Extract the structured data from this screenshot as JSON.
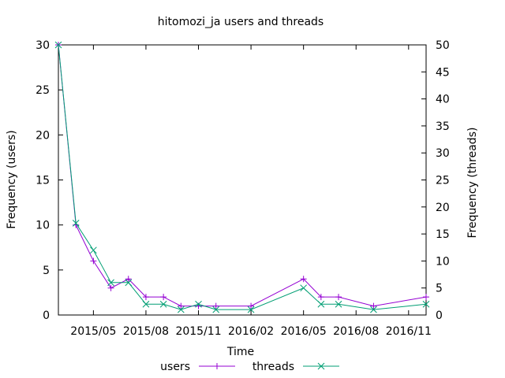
{
  "chart_data": {
    "type": "line",
    "title": "hitomozi_ja users and threads",
    "xlabel": "Time",
    "ylabel_left": "Frequency (users)",
    "ylabel_right": "Frequency (threads)",
    "x": [
      "2015-03",
      "2015-04",
      "2015-05",
      "2015-06",
      "2015-07",
      "2015-08",
      "2015-09",
      "2015-10",
      "2015-11",
      "2015-12",
      "2016-01",
      "2016-02",
      "2016-03",
      "2016-04",
      "2016-05",
      "2016-06",
      "2016-07",
      "2016-08",
      "2016-09",
      "2016-10",
      "2016-11",
      "2016-12"
    ],
    "x_ticks": [
      "2015/05",
      "2015/08",
      "2015/11",
      "2016/02",
      "2016/05",
      "2016/08",
      "2016/11"
    ],
    "left_axis": {
      "range": [
        0,
        30
      ],
      "ticks": [
        0,
        5,
        10,
        15,
        20,
        25,
        30
      ]
    },
    "right_axis": {
      "range": [
        0,
        50
      ],
      "ticks": [
        0,
        5,
        10,
        15,
        20,
        25,
        30,
        35,
        40,
        45,
        50
      ]
    },
    "legend_position": "bottom",
    "grid": false,
    "series": [
      {
        "name": "users",
        "axis": "left",
        "color": "#9400d3",
        "marker": "plus",
        "points": [
          [
            "2015-03",
            30
          ],
          [
            "2015-04",
            10
          ],
          [
            "2015-05",
            6
          ],
          [
            "2015-06",
            3
          ],
          [
            "2015-07",
            4
          ],
          [
            "2015-08",
            2
          ],
          [
            "2015-09",
            2
          ],
          [
            "2015-10",
            1
          ],
          [
            "2015-11",
            1
          ],
          [
            "2015-12",
            1
          ],
          [
            "2016-02",
            1
          ],
          [
            "2016-05",
            4
          ],
          [
            "2016-06",
            2
          ],
          [
            "2016-07",
            2
          ],
          [
            "2016-09",
            1
          ],
          [
            "2016-12",
            2
          ]
        ]
      },
      {
        "name": "threads",
        "axis": "right",
        "color": "#009e73",
        "marker": "cross",
        "points": [
          [
            "2015-03",
            50
          ],
          [
            "2015-04",
            17
          ],
          [
            "2015-05",
            12
          ],
          [
            "2015-06",
            6
          ],
          [
            "2015-07",
            6
          ],
          [
            "2015-08",
            2
          ],
          [
            "2015-09",
            2
          ],
          [
            "2015-10",
            1
          ],
          [
            "2015-11",
            2
          ],
          [
            "2015-12",
            1
          ],
          [
            "2016-02",
            1
          ],
          [
            "2016-05",
            5
          ],
          [
            "2016-06",
            2
          ],
          [
            "2016-07",
            2
          ],
          [
            "2016-09",
            1
          ],
          [
            "2016-12",
            2
          ]
        ]
      }
    ]
  }
}
